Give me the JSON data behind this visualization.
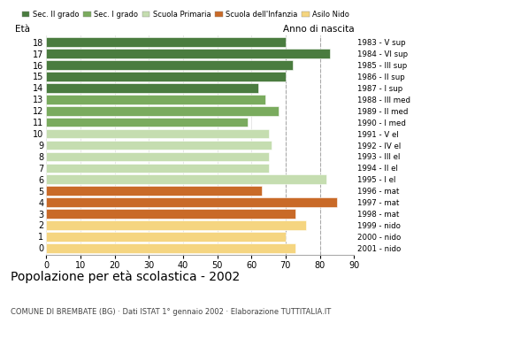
{
  "ages": [
    18,
    17,
    16,
    15,
    14,
    13,
    12,
    11,
    10,
    9,
    8,
    7,
    6,
    5,
    4,
    3,
    2,
    1,
    0
  ],
  "values": [
    70,
    83,
    72,
    70,
    62,
    64,
    68,
    59,
    65,
    66,
    65,
    65,
    82,
    63,
    85,
    73,
    76,
    70,
    73
  ],
  "right_labels": [
    "1983 - V sup",
    "1984 - VI sup",
    "1985 - III sup",
    "1986 - II sup",
    "1987 - I sup",
    "1988 - III med",
    "1989 - II med",
    "1990 - I med",
    "1991 - V el",
    "1992 - IV el",
    "1993 - III el",
    "1994 - II el",
    "1995 - I el",
    "1996 - mat",
    "1997 - mat",
    "1998 - mat",
    "1999 - nido",
    "2000 - nido",
    "2001 - nido"
  ],
  "bar_colors": [
    "#4a7c3f",
    "#4a7c3f",
    "#4a7c3f",
    "#4a7c3f",
    "#4a7c3f",
    "#7aab5e",
    "#7aab5e",
    "#7aab5e",
    "#c5ddb0",
    "#c5ddb0",
    "#c5ddb0",
    "#c5ddb0",
    "#c5ddb0",
    "#c96a28",
    "#c96a28",
    "#c96a28",
    "#f5d580",
    "#f5d580",
    "#f5d580"
  ],
  "legend_labels": [
    "Sec. II grado",
    "Sec. I grado",
    "Scuola Primaria",
    "Scuola dell'Infanzia",
    "Asilo Nido"
  ],
  "legend_colors": [
    "#4a7c3f",
    "#7aab5e",
    "#c5ddb0",
    "#c96a28",
    "#f5d580"
  ],
  "title": "Popolazione per età scolastica - 2002",
  "subtitle": "COMUNE DI BREMBATE (BG) · Dati ISTAT 1° gennaio 2002 · Elaborazione TUTTITALIA.IT",
  "xlabel_left": "Età",
  "xlabel_right": "Anno di nascita",
  "xlim": [
    0,
    90
  ],
  "xticks": [
    0,
    10,
    20,
    30,
    40,
    50,
    60,
    70,
    80,
    90
  ],
  "dashed_lines": [
    70,
    80
  ],
  "background_color": "#ffffff"
}
